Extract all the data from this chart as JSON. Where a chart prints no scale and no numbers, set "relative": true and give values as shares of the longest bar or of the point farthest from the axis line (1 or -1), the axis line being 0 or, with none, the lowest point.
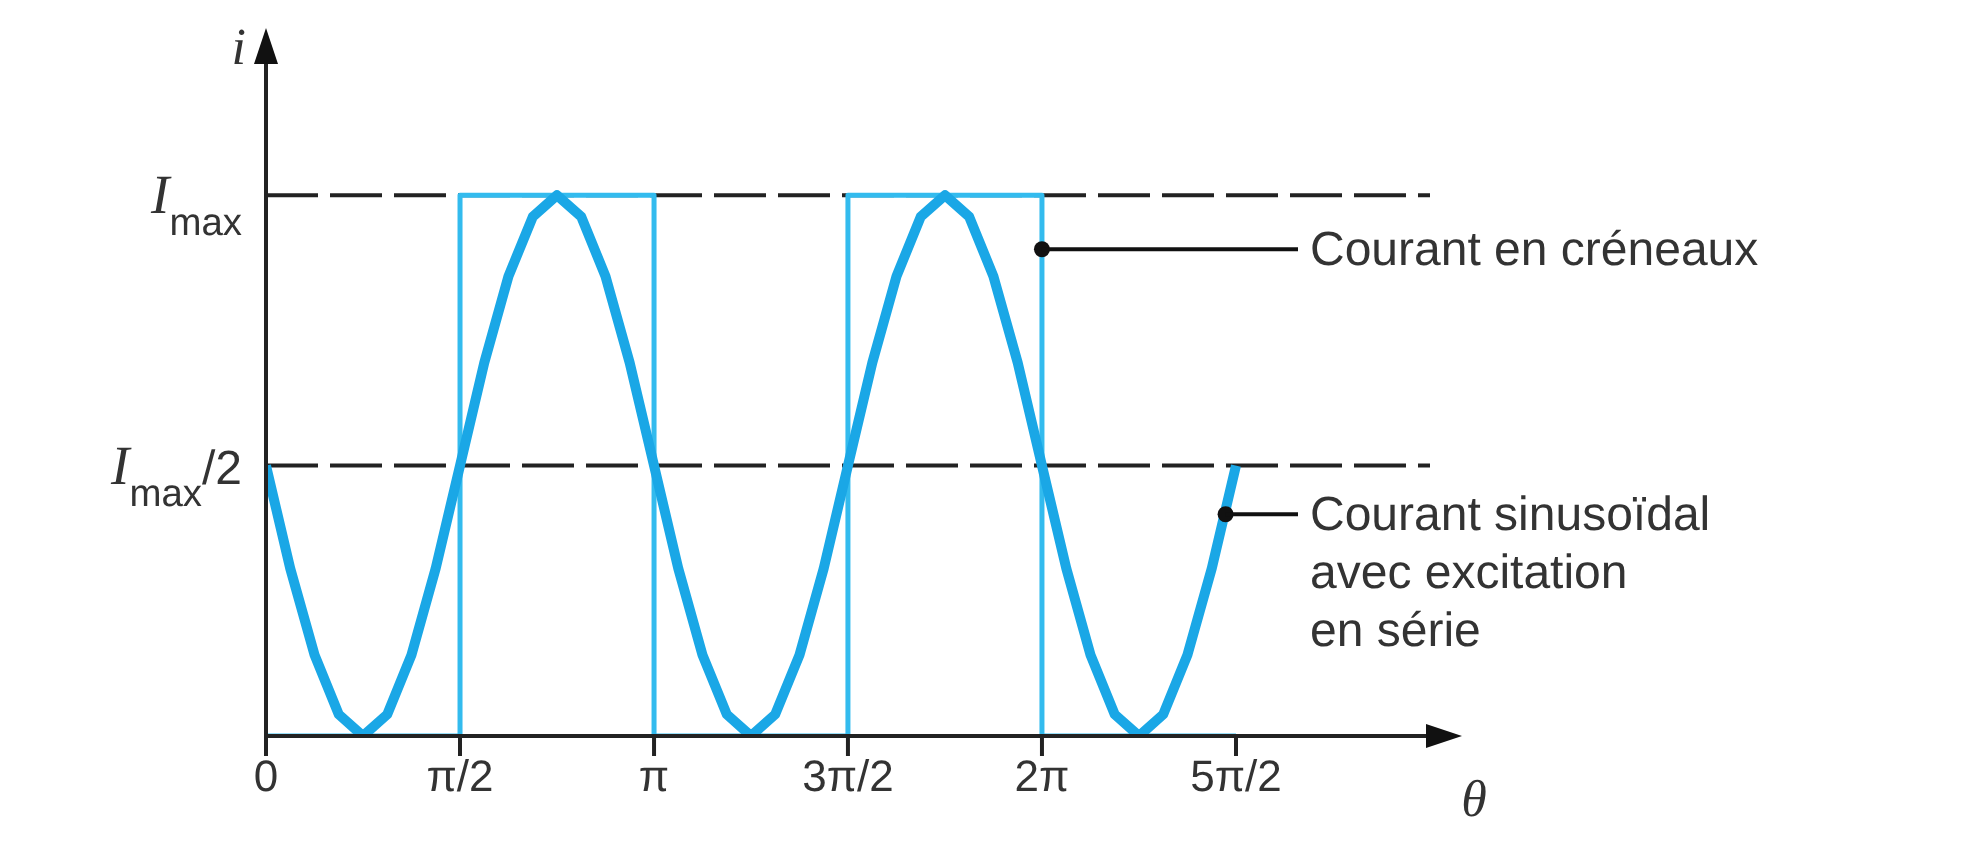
{
  "chart_data": {
    "type": "line",
    "xlabel": "θ",
    "ylabel": "i",
    "relative": true,
    "xlim": [
      0,
      9.425
    ],
    "xticks": [
      {
        "value": 0,
        "label": "0"
      },
      {
        "value": 1.571,
        "label": "π/2"
      },
      {
        "value": 3.142,
        "label": "π"
      },
      {
        "value": 4.712,
        "label": "3π/2"
      },
      {
        "value": 6.283,
        "label": "2π"
      },
      {
        "value": 7.854,
        "label": "5π/2"
      }
    ],
    "grid": false,
    "marker": "none",
    "series": [
      {
        "type": "step",
        "color": "#33bbee",
        "x": [
          0,
          1.571,
          3.142,
          4.712,
          6.283,
          7.854
        ],
        "values": [
          0,
          1,
          0,
          1,
          0,
          0
        ]
      },
      {
        "color": "#1aa7e6",
        "x": [
          0,
          0.196,
          0.393,
          0.589,
          0.785,
          0.982,
          1.178,
          1.374,
          1.571,
          1.767,
          1.963,
          2.16,
          2.356,
          2.553,
          2.749,
          2.945,
          3.142,
          3.338,
          3.534,
          3.731,
          3.927,
          4.123,
          4.32,
          4.516,
          4.712,
          4.909,
          5.105,
          5.301,
          5.498,
          5.694,
          5.89,
          6.087,
          6.283,
          6.48,
          6.676,
          6.872,
          7.069,
          7.265,
          7.461,
          7.658,
          7.854
        ],
        "values": [
          0.5,
          0.31,
          0.15,
          0.04,
          0,
          0.04,
          0.15,
          0.31,
          0.5,
          0.69,
          0.85,
          0.96,
          1,
          0.96,
          0.85,
          0.69,
          0.5,
          0.31,
          0.15,
          0.04,
          0,
          0.04,
          0.15,
          0.31,
          0.5,
          0.69,
          0.85,
          0.96,
          1,
          0.96,
          0.85,
          0.69,
          0.5,
          0.31,
          0.15,
          0.04,
          0,
          0.04,
          0.15,
          0.31,
          0.5
        ]
      }
    ],
    "ref_lines": [
      {
        "axis": "y",
        "value": 1,
        "label": "I$_{max}$",
        "color": "#222222",
        "line_style": "dashed"
      },
      {
        "axis": "y",
        "value": 0.5,
        "label": "I$_{max}$/2",
        "color": "#222222",
        "line_style": "dashed"
      }
    ],
    "annotations": [
      {
        "text": "Courant en créneaux",
        "x": 6.283,
        "y": 0.9
      },
      {
        "text": "Courant sinusoïdal\navec excitation\nen série",
        "x": 7.77,
        "y": 0.41
      }
    ]
  }
}
